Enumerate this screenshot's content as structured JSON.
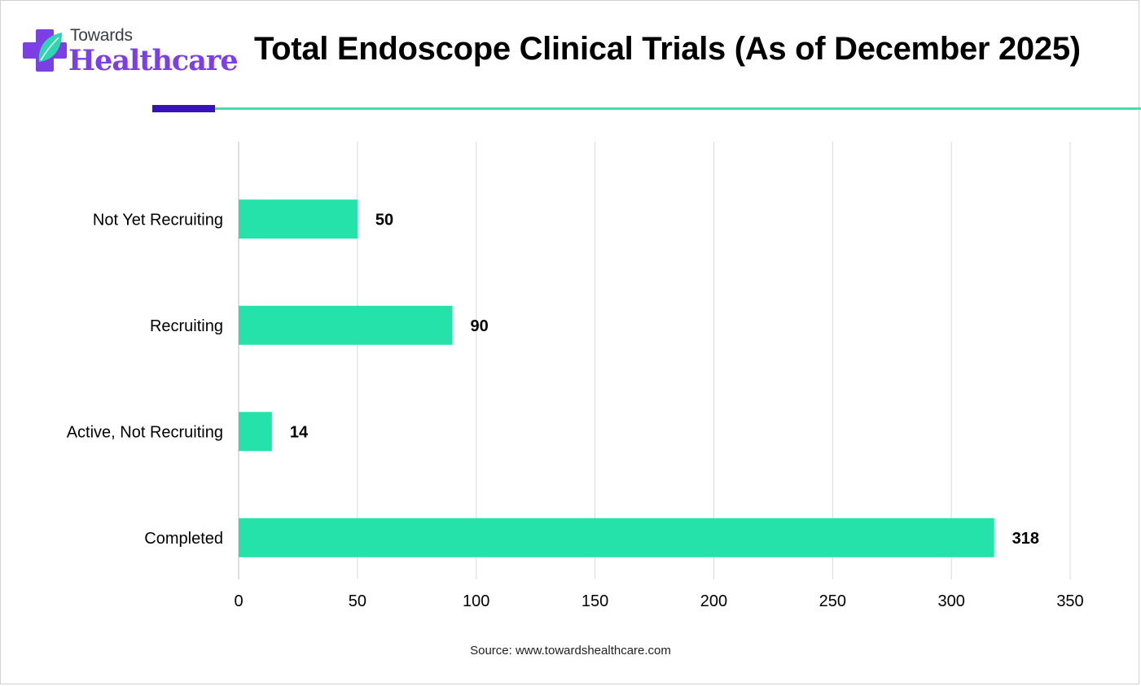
{
  "brand": {
    "small_text": "Towards",
    "big_text": "Healthcare",
    "colors": {
      "purple": "#7b3fe4",
      "teal": "#2fd4b0",
      "dark": "#3a13b8"
    }
  },
  "title": "Total Endoscope Clinical Trials (As of December 2025)",
  "source": "Source: www.towardshealthcare.com",
  "chart_data": {
    "type": "bar",
    "orientation": "horizontal",
    "title": "Total Endoscope Clinical Trials (As of December 2025)",
    "categories": [
      "Not Yet Recruiting",
      "Recruiting",
      "Active, Not Recruiting",
      "Completed"
    ],
    "values": [
      50,
      90,
      14,
      318
    ],
    "data_labels": [
      "50",
      "90",
      "14",
      "318"
    ],
    "xlim": [
      0,
      350
    ],
    "x_ticks": [
      0,
      50,
      100,
      150,
      200,
      250,
      300,
      350
    ],
    "xlabel": "",
    "ylabel": "",
    "grid": "vertical",
    "legend": "none",
    "bar_color": "#25e2aa",
    "grid_color": "#d9d9d9"
  }
}
